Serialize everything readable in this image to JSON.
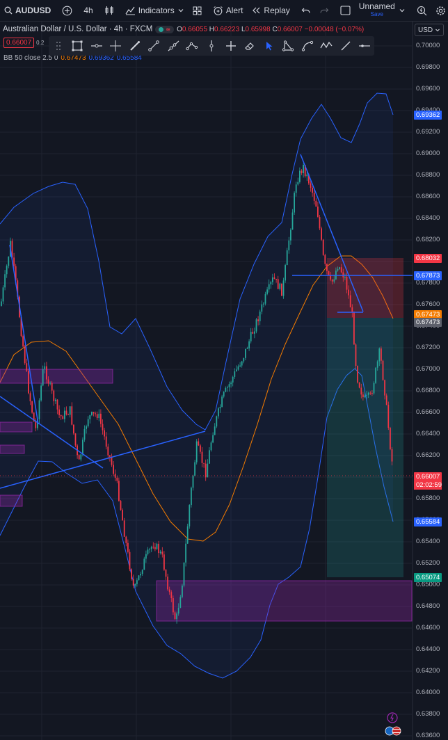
{
  "toolbar": {
    "symbol": "AUDUSD",
    "interval": "4h",
    "indicators_label": "Indicators",
    "alert_label": "Alert",
    "replay_label": "Replay",
    "layout_name": "Unnamed",
    "save_label": "Save"
  },
  "legend": {
    "title": "Australian Dollar / U.S. Dollar · 4h · FXCM",
    "open_label": "O",
    "open": "0.66055",
    "high_label": "H",
    "high": "0.66223",
    "low_label": "L",
    "low": "0.65998",
    "close_label": "C",
    "close": "0.66007",
    "change": "−0.00048 (−0.07%)",
    "sell_price": "0.66007",
    "spread": "0.2",
    "bb_label": "BB 50 close 2.5 0",
    "bb_basis": "0.67473",
    "bb_upper": "0.69362",
    "bb_lower": "0.65584"
  },
  "currency": "USD",
  "price_axis": {
    "ticks": [
      "0.70000",
      "0.69800",
      "0.69600",
      "0.69400",
      "0.69200",
      "0.69000",
      "0.68800",
      "0.68600",
      "0.68400",
      "0.68200",
      "0.68000",
      "0.67800",
      "0.67600",
      "0.67400",
      "0.67200",
      "0.67000",
      "0.66800",
      "0.66600",
      "0.66400",
      "0.66200",
      "0.66000",
      "0.65800",
      "0.65600",
      "0.65400",
      "0.65200",
      "0.65000",
      "0.64800",
      "0.64600",
      "0.64400",
      "0.64200",
      "0.64000",
      "0.63800",
      "0.63600"
    ],
    "tags": [
      {
        "value": "0.69362",
        "color": "#2962ff"
      },
      {
        "value": "0.68032",
        "color": "#f23645"
      },
      {
        "value": "0.67873",
        "color": "#2962ff"
      },
      {
        "value": "0.67473",
        "color": "#f57c00"
      },
      {
        "value": "0.67473",
        "color": "#5d606b"
      },
      {
        "value": "0.66007",
        "color": "#f23645"
      },
      {
        "value": "0.65584",
        "color": "#2962ff"
      },
      {
        "value": "0.65074",
        "color": "#089981"
      }
    ],
    "countdown": "02:02:59"
  },
  "colors": {
    "bull": "#26a69a",
    "bear": "#f23645",
    "bb_band": "#2962ff",
    "bb_basis": "#f57c00",
    "zone": "#9c27b0"
  }
}
